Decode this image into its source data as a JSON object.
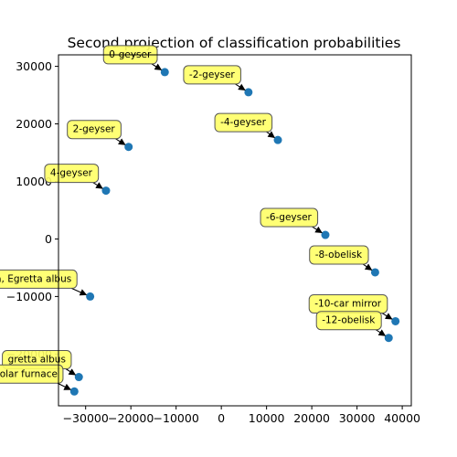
{
  "chart_data": {
    "type": "scatter",
    "title": "Second projection of classification probabilities",
    "xlabel": "",
    "ylabel": "",
    "xlim": [
      -36000,
      42000
    ],
    "ylim": [
      -29000,
      32000
    ],
    "xticks": [
      -30000,
      -20000,
      -10000,
      0,
      10000,
      20000,
      30000,
      40000
    ],
    "yticks": [
      -20000,
      -10000,
      0,
      10000,
      20000,
      30000
    ],
    "xtick_labels": [
      "−30000",
      "−20000",
      "−10000",
      "0",
      "10000",
      "20000",
      "30000",
      "40000"
    ],
    "ytick_labels": [
      "−20000",
      "−10000",
      "0",
      "10000",
      "20000",
      "30000"
    ],
    "grid": false,
    "point_color": "#1f77b4",
    "annotation_face": "#ffff66",
    "annotation_edge": "#555555",
    "points": [
      {
        "label": "0-geyser",
        "x": -12500,
        "y": 29000
      },
      {
        "label": "-2-geyser",
        "x": 6000,
        "y": 25500
      },
      {
        "label": "2-geyser",
        "x": -20500,
        "y": 16000
      },
      {
        "label": "-4-geyser",
        "x": 12500,
        "y": 17200
      },
      {
        "label": "4-geyser",
        "x": -25500,
        "y": 8400
      },
      {
        "label": "-6-geyser",
        "x": 23000,
        "y": 700
      },
      {
        "label": "-8-obelisk",
        "x": 34000,
        "y": -5800
      },
      {
        "label": "a, Egretta albus",
        "x": -29000,
        "y": -10000
      },
      {
        "label": "-10-car mirror",
        "x": 38500,
        "y": -14300
      },
      {
        "label": "-12-obelisk",
        "x": 37000,
        "y": -17200
      },
      {
        "label": "gretta albus",
        "x": -31500,
        "y": -24000
      },
      {
        "label": "olar furnace",
        "x": -32500,
        "y": -26500
      }
    ]
  }
}
